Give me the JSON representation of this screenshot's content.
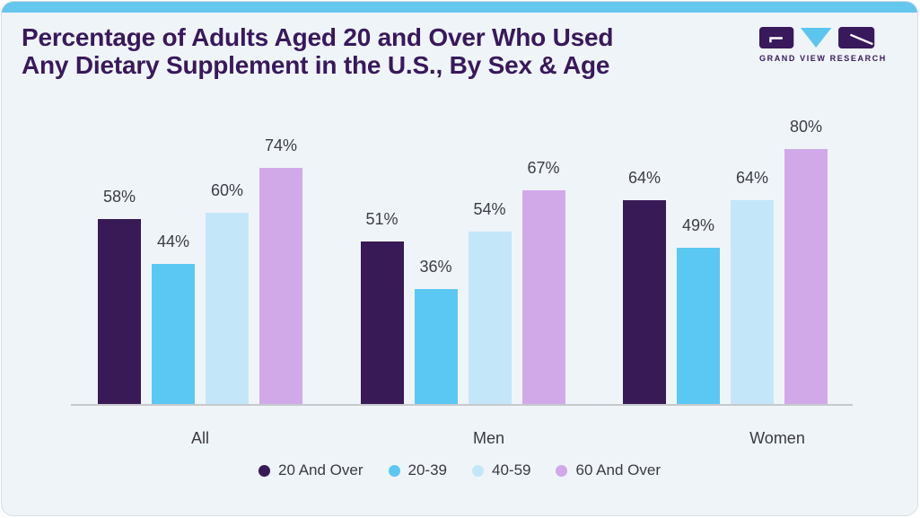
{
  "header": {
    "title_line1": "Percentage of Adults Aged 20 and Over Who Used",
    "title_line2": "Any Dietary Supplement in the U.S., By Sex & Age",
    "logo_text": "GRAND VIEW RESEARCH"
  },
  "chart_data": {
    "type": "bar",
    "title": "Percentage of Adults Aged 20 and Over Who Used Any Dietary Supplement in the U.S., By Sex & Age",
    "categories": [
      "All",
      "Men",
      "Women"
    ],
    "series": [
      {
        "name": "20 And Over",
        "color": "#371a56",
        "values": [
          58,
          51,
          64
        ]
      },
      {
        "name": "20-39",
        "color": "#5bc7f3",
        "values": [
          44,
          36,
          49
        ]
      },
      {
        "name": "40-59",
        "color": "#c3e7f8",
        "values": [
          60,
          54,
          64
        ]
      },
      {
        "name": "60 And Over",
        "color": "#d1a9e9",
        "values": [
          74,
          67,
          80
        ]
      }
    ],
    "value_suffix": "%",
    "ylim": [
      0,
      85
    ],
    "grid": false,
    "legend_position": "bottom",
    "xlabel": "",
    "ylabel": ""
  },
  "colors": {
    "card_background": "#eff4f9",
    "top_strip": "#65c6ee",
    "title_text": "#38195b",
    "axis_line": "#c7c9cc",
    "value_label": "#3c3c45",
    "category_label": "#3a3a42",
    "card_border": "#d8dee4",
    "logo_purple": "#38195b",
    "logo_blue": "#5cc5ef"
  }
}
